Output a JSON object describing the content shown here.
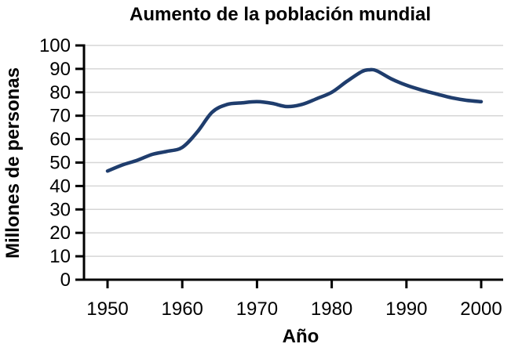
{
  "chart": {
    "title": "Aumento de la población mundial",
    "x_axis_label": "Año",
    "y_axis_label": "Millones de personas"
  },
  "chart_data": {
    "type": "line",
    "title": "Aumento de la población mundial",
    "xlabel": "Año",
    "ylabel": "Millones de personas",
    "xlim": [
      1947,
      2003
    ],
    "ylim": [
      0,
      100
    ],
    "xticks": [
      1950,
      1960,
      1970,
      1980,
      1990,
      2000
    ],
    "yticks": [
      0,
      10,
      20,
      30,
      40,
      50,
      60,
      70,
      80,
      90,
      100
    ],
    "grid": "horizontal",
    "legend": "none",
    "colors": {
      "line": "#1f3d6d",
      "grid": "#d6d6d6",
      "axis": "#000000",
      "text": "#000000"
    },
    "series": [
      {
        "x": [
          1950,
          1952,
          1954,
          1956,
          1958,
          1960,
          1962,
          1964,
          1966,
          1968,
          1970,
          1972,
          1974,
          1976,
          1978,
          1980,
          1982,
          1984,
          1985,
          1986,
          1988,
          1990,
          1992,
          1994,
          1996,
          1998,
          2000
        ],
        "y": [
          46.4,
          49,
          51,
          53.5,
          54.8,
          56.5,
          63,
          71.5,
          74.8,
          75.5,
          76,
          75.3,
          73.9,
          74.8,
          77.3,
          80,
          84.6,
          88.8,
          89.6,
          89.2,
          85.7,
          83,
          81,
          79.3,
          77.7,
          76.6,
          76
        ]
      }
    ]
  }
}
